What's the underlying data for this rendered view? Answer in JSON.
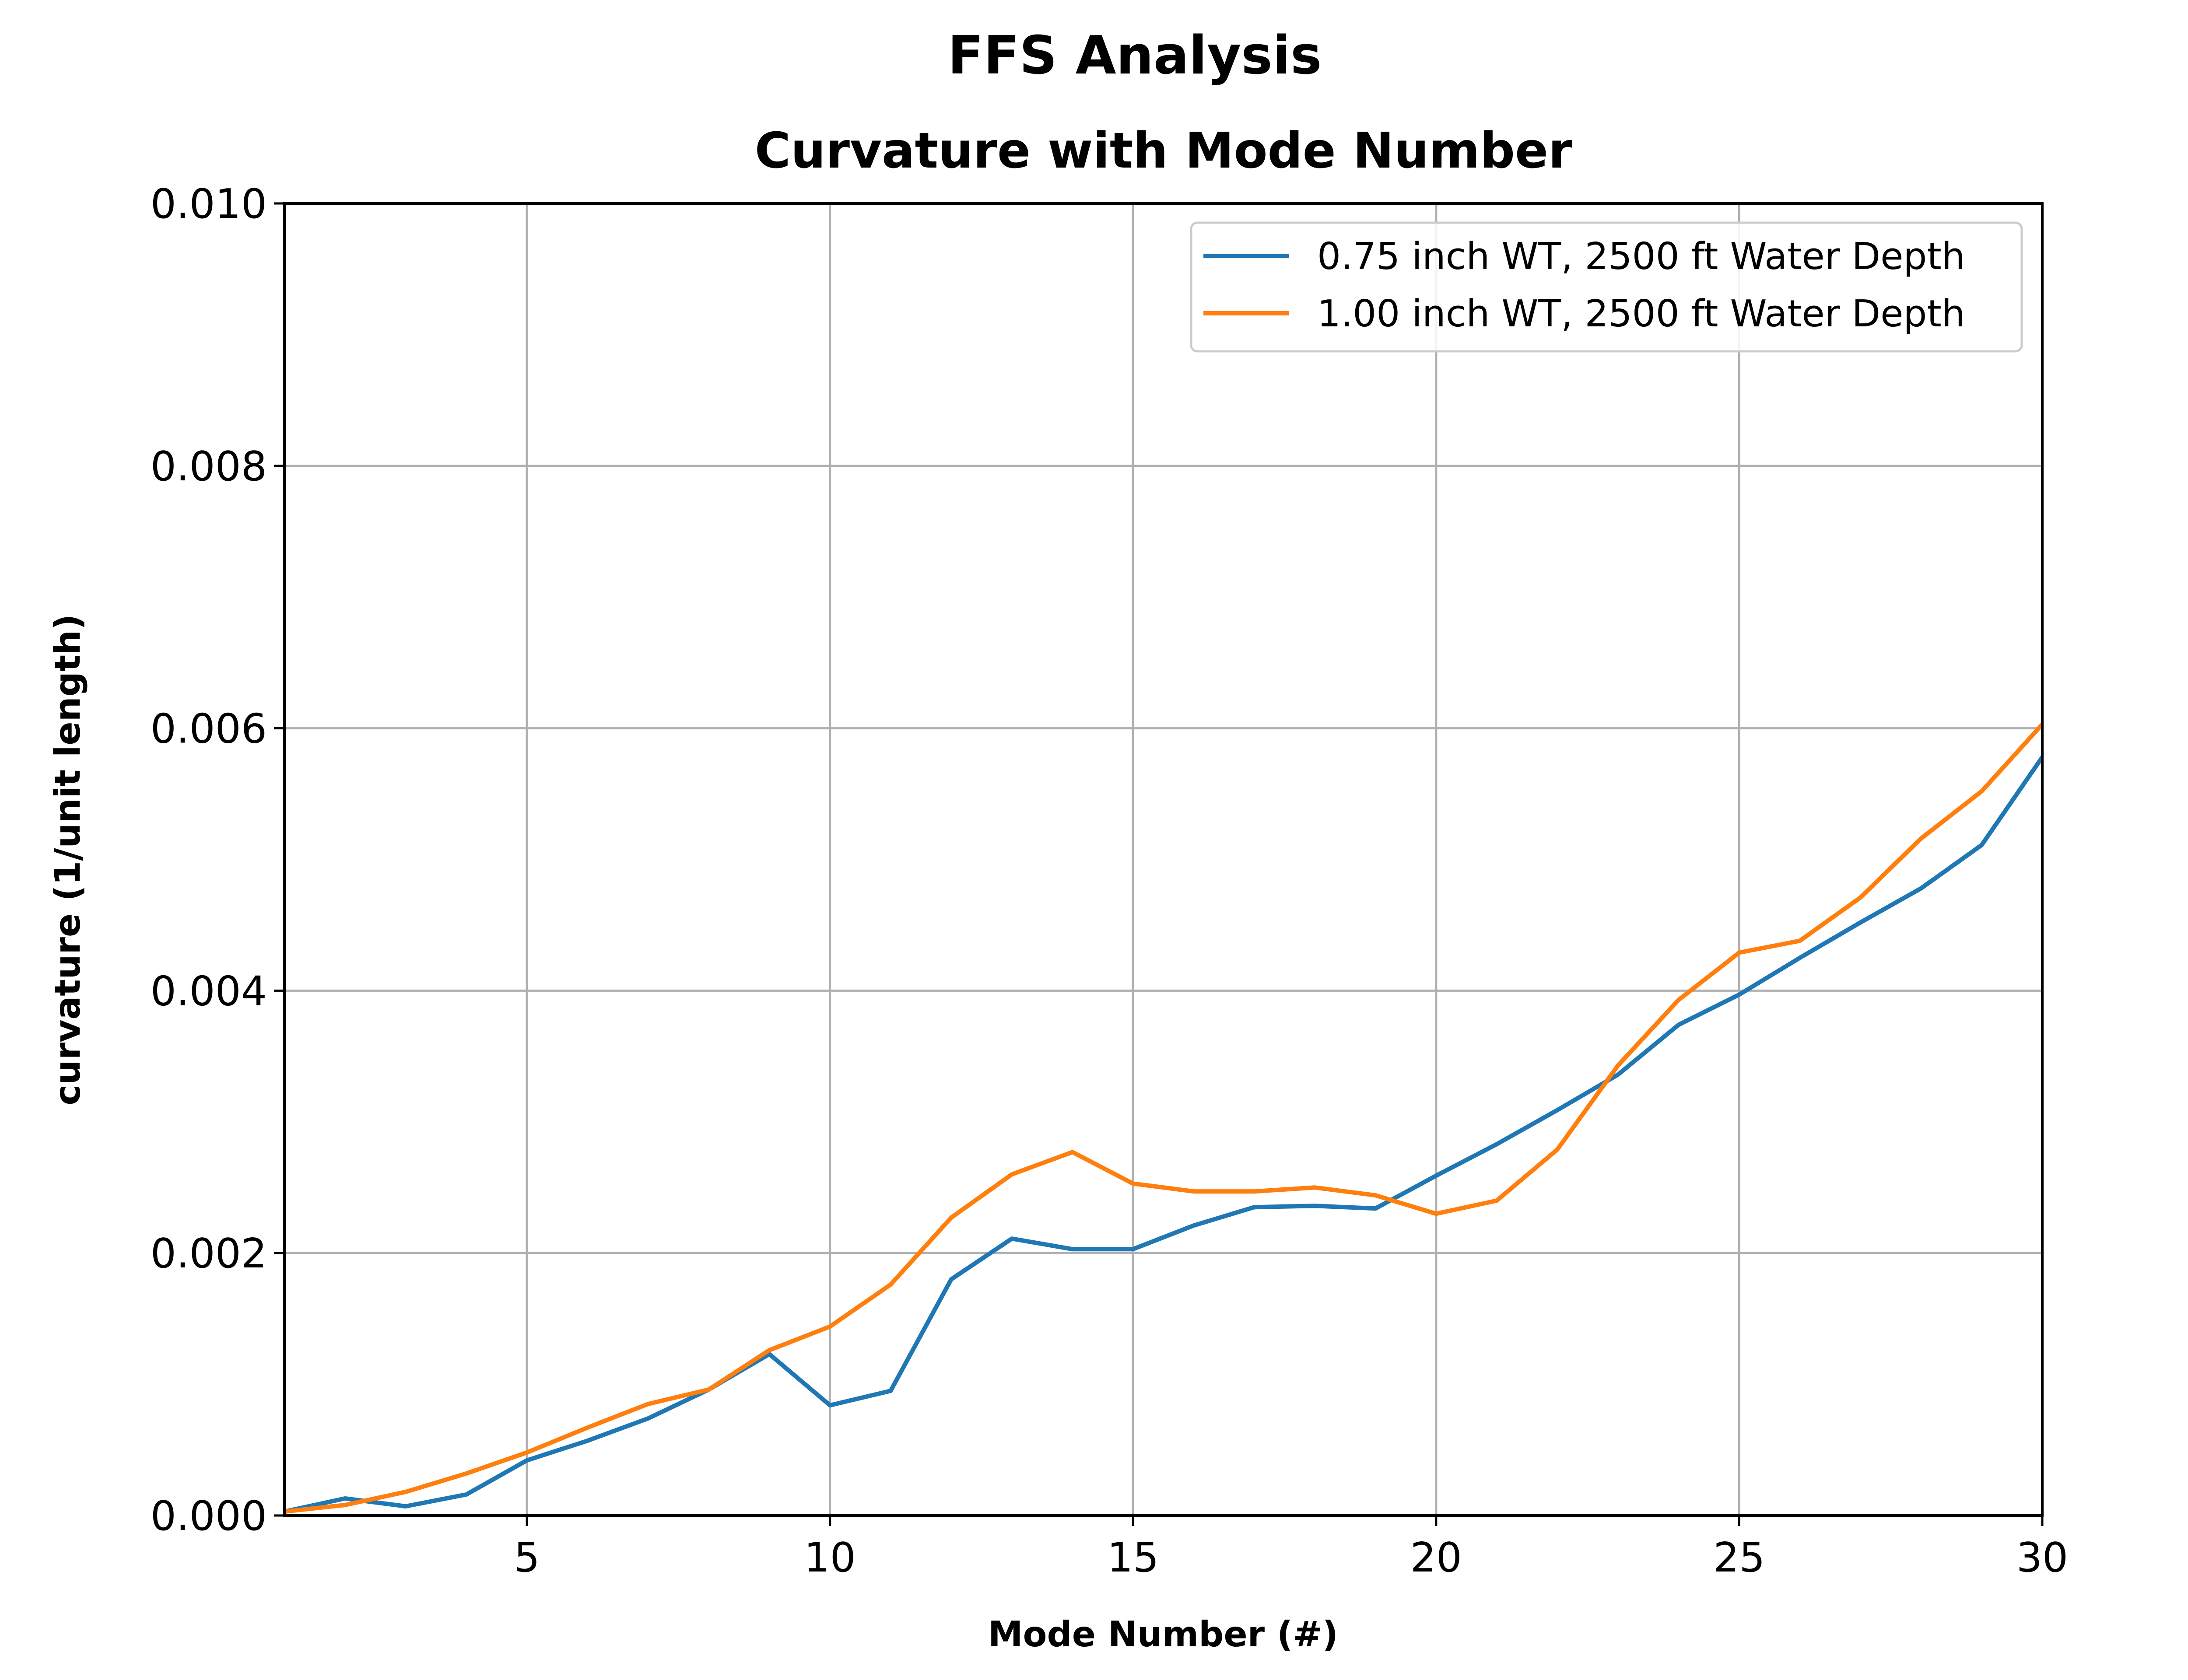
{
  "suptitle": "FFS Analysis",
  "chart_data": {
    "type": "line",
    "title": "Curvature with Mode Number",
    "xlabel": "Mode Number (#)",
    "ylabel": "curvature (1/unit length)",
    "xlim": [
      1,
      30
    ],
    "ylim": [
      0,
      0.01
    ],
    "xticks": [
      5,
      10,
      15,
      20,
      25,
      30
    ],
    "xtick_labels": [
      "5",
      "10",
      "15",
      "20",
      "25",
      "30"
    ],
    "yticks": [
      0,
      0.002,
      0.004,
      0.006,
      0.008,
      0.01
    ],
    "ytick_labels": [
      "0.000",
      "0.002",
      "0.004",
      "0.006",
      "0.008",
      "0.010"
    ],
    "grid": true,
    "legend_position": "top-right",
    "x": [
      1,
      2,
      3,
      4,
      5,
      6,
      7,
      8,
      9,
      10,
      11,
      12,
      13,
      14,
      15,
      16,
      17,
      18,
      19,
      20,
      21,
      22,
      23,
      24,
      25,
      26,
      27,
      28,
      29,
      30
    ],
    "series": [
      {
        "name": "0.75 inch WT, 2500 ft Water Depth",
        "color": "#1f77b4",
        "values": [
          3e-05,
          0.00013,
          7e-05,
          0.00016,
          0.00042,
          0.00057,
          0.00074,
          0.00096,
          0.00123,
          0.00084,
          0.00095,
          0.0018,
          0.00211,
          0.00203,
          0.00203,
          0.00221,
          0.00235,
          0.00236,
          0.00234,
          0.00259,
          0.00283,
          0.00309,
          0.00336,
          0.00374,
          0.00397,
          0.00425,
          0.00452,
          0.00478,
          0.00511,
          0.00578
        ]
      },
      {
        "name": "1.00 inch WT, 2500 ft Water Depth",
        "color": "#ff7f0e",
        "values": [
          3e-05,
          8e-05,
          0.00018,
          0.00032,
          0.00048,
          0.00067,
          0.00085,
          0.00096,
          0.00126,
          0.00144,
          0.00176,
          0.00227,
          0.0026,
          0.00277,
          0.00253,
          0.00247,
          0.00247,
          0.0025,
          0.00244,
          0.0023,
          0.0024,
          0.00279,
          0.00343,
          0.00393,
          0.00429,
          0.00438,
          0.00471,
          0.00516,
          0.00552,
          0.00603
        ]
      }
    ]
  }
}
